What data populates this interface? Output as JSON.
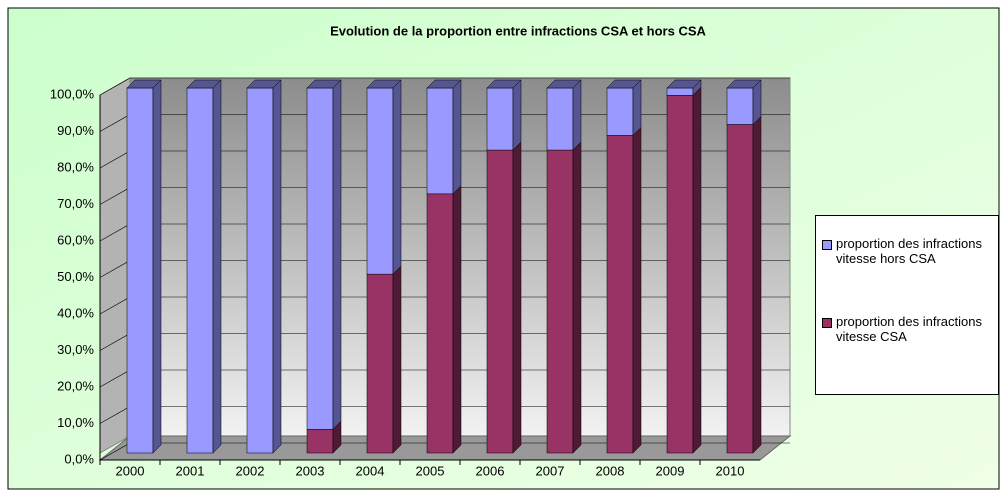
{
  "chart_data": {
    "type": "bar3d_stacked",
    "title": "Evolution de la proportion entre infractions CSA et hors CSA",
    "categories": [
      "2000",
      "2001",
      "2002",
      "2003",
      "2004",
      "2005",
      "2006",
      "2007",
      "2008",
      "2009",
      "2010"
    ],
    "series": [
      {
        "name": "proportion des infractions vitesse hors CSA",
        "color": "#9999ff",
        "side": "#55558f",
        "values": [
          100,
          100,
          100,
          93.5,
          51,
          29,
          17,
          17,
          13,
          2,
          10
        ]
      },
      {
        "name": "proportion des infractions vitesse CSA",
        "color": "#993366",
        "side": "#4f1a36",
        "values": [
          0,
          0,
          0,
          6.5,
          49,
          71,
          83,
          83,
          87,
          98,
          90
        ]
      }
    ],
    "ylim": [
      0,
      100
    ],
    "yticks": [
      {
        "value": 0,
        "label": "0,0%"
      },
      {
        "value": 10,
        "label": "10,0%"
      },
      {
        "value": 20,
        "label": "20,0%"
      },
      {
        "value": 30,
        "label": "30,0%"
      },
      {
        "value": 40,
        "label": "40,0%"
      },
      {
        "value": 50,
        "label": "50,0%"
      },
      {
        "value": 60,
        "label": "60,0%"
      },
      {
        "value": 70,
        "label": "70,0%"
      },
      {
        "value": 80,
        "label": "80,0%"
      },
      {
        "value": 90,
        "label": "90,0%"
      },
      {
        "value": 100,
        "label": "100,0%"
      }
    ],
    "grid": true,
    "legend": "right"
  }
}
